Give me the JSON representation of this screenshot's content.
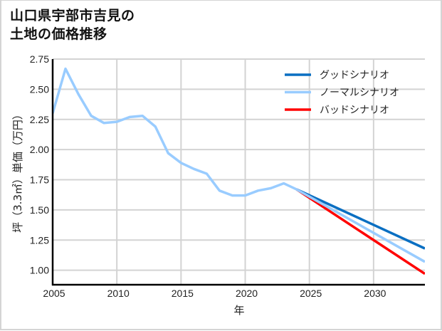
{
  "title": {
    "line1": "山口県宇部市吉見の",
    "line2": "土地の価格推移"
  },
  "chart_data": {
    "type": "line",
    "title": "山口県宇部市吉見の土地の価格推移",
    "xlabel": "年",
    "ylabel": "坪（3.3㎡）単価（万円）",
    "xlim": [
      2005,
      2034
    ],
    "ylim": [
      0.88,
      2.75
    ],
    "grid": true,
    "legend_position": "upper right",
    "x_ticks": [
      2005,
      2010,
      2015,
      2020,
      2025,
      2030
    ],
    "x_tick_labels": [
      "2005",
      "2010",
      "2015",
      "2020",
      "2025",
      "2030"
    ],
    "y_ticks": [
      1.0,
      1.25,
      1.5,
      1.75,
      2.0,
      2.25,
      2.5,
      2.75
    ],
    "y_tick_labels": [
      "1.00",
      "1.25",
      "1.50",
      "1.75",
      "2.00",
      "2.25",
      "2.50",
      "2.75"
    ],
    "series": [
      {
        "name": "グッドシナリオ",
        "color": "#0a6fc2",
        "x": [
          2024,
          2034
        ],
        "values": [
          1.67,
          1.18
        ]
      },
      {
        "name": "ノーマルシナリオ",
        "color": "#99ccff",
        "x": [
          2005,
          2006,
          2007,
          2008,
          2009,
          2010,
          2011,
          2012,
          2013,
          2014,
          2015,
          2016,
          2017,
          2018,
          2019,
          2020,
          2021,
          2022,
          2023,
          2024,
          2034
        ],
        "values": [
          2.3,
          2.67,
          2.46,
          2.28,
          2.22,
          2.23,
          2.27,
          2.28,
          2.19,
          1.97,
          1.89,
          1.84,
          1.8,
          1.66,
          1.62,
          1.62,
          1.66,
          1.68,
          1.72,
          1.67,
          1.07
        ]
      },
      {
        "name": "バッドシナリオ",
        "color": "#ff0000",
        "x": [
          2024,
          2034
        ],
        "values": [
          1.67,
          0.97
        ]
      }
    ]
  }
}
